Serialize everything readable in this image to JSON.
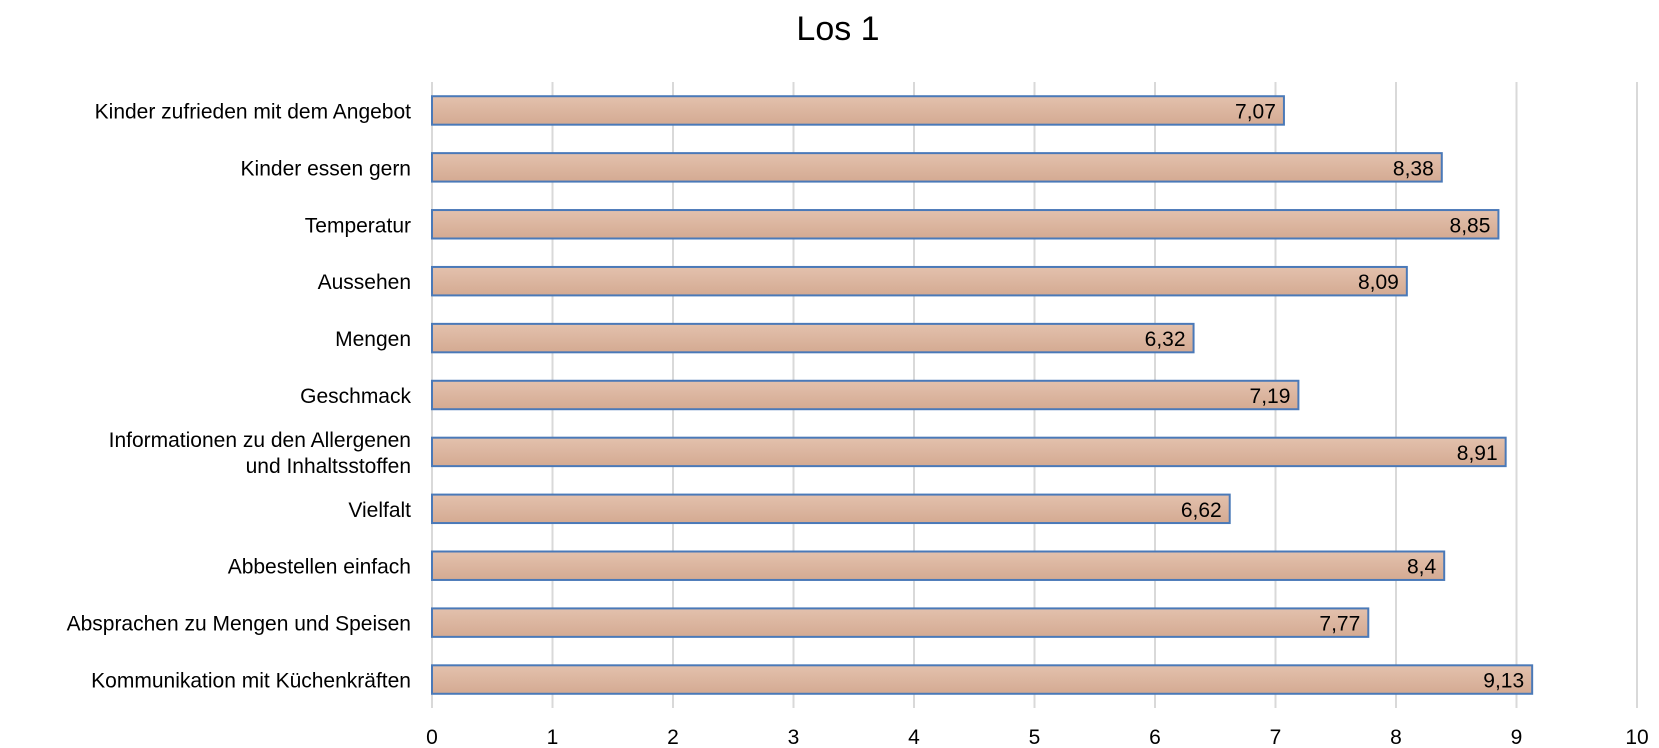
{
  "chart_data": {
    "type": "bar",
    "orientation": "horizontal",
    "title": "Los 1",
    "categories": [
      [
        "Kinder zufrieden mit dem Angebot"
      ],
      [
        "Kinder essen gern"
      ],
      [
        "Temperatur"
      ],
      [
        "Aussehen"
      ],
      [
        "Mengen"
      ],
      [
        "Geschmack"
      ],
      [
        "Informationen zu den Allergenen",
        "und Inhaltsstoffen"
      ],
      [
        "Vielfalt"
      ],
      [
        "Abbestellen einfach"
      ],
      [
        "Absprachen zu Mengen und Speisen"
      ],
      [
        "Kommunikation mit Küchenkräften"
      ]
    ],
    "values": [
      7.07,
      8.38,
      8.85,
      8.09,
      6.32,
      7.19,
      8.91,
      6.62,
      8.4,
      7.77,
      9.13
    ],
    "data_labels": [
      "7,07",
      "8,38",
      "8,85",
      "8,09",
      "6,32",
      "7,19",
      "8,91",
      "6,62",
      "8,4",
      "7,77",
      "9,13"
    ],
    "xlim": [
      0,
      10
    ],
    "xticks": [
      0,
      1,
      2,
      3,
      4,
      5,
      6,
      7,
      8,
      9,
      10
    ],
    "xticklabels": [
      "0",
      "1",
      "2",
      "3",
      "4",
      "5",
      "6",
      "7",
      "8",
      "9",
      "10"
    ],
    "grid": "vertical",
    "legend": "none",
    "colors": {
      "bar_fill_top": "#e3c1ad",
      "bar_fill_bottom": "#d4aa92",
      "bar_stroke": "#4a79b8",
      "grid": "#d9d9d9"
    }
  }
}
